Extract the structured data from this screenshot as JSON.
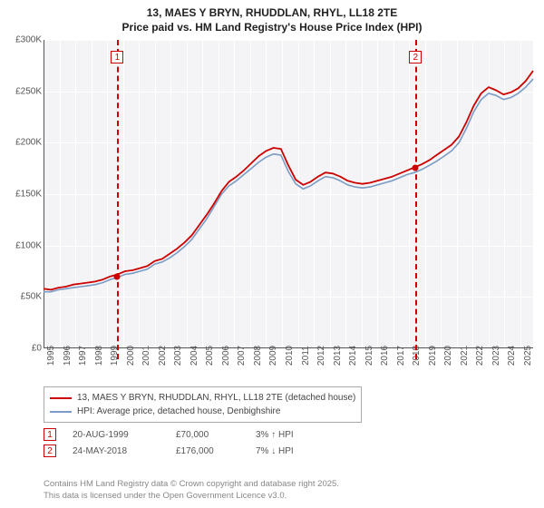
{
  "title": {
    "line1": "13, MAES Y BRYN, RHUDDLAN, RHYL, LL18 2TE",
    "line2": "Price paid vs. HM Land Registry's House Price Index (HPI)"
  },
  "chart": {
    "type": "line",
    "background_color": "#f4f4f6",
    "grid_color": "#ffffff",
    "axis_color": "#555555",
    "xlim": [
      1995,
      2025.8
    ],
    "years": [
      1995,
      1996,
      1997,
      1998,
      1999,
      2000,
      2001,
      2002,
      2003,
      2004,
      2005,
      2006,
      2007,
      2008,
      2009,
      2010,
      2011,
      2012,
      2013,
      2014,
      2015,
      2016,
      2017,
      2018,
      2019,
      2020,
      2021,
      2022,
      2023,
      2024,
      2025
    ],
    "ylim": [
      0,
      300000
    ],
    "ytick_step": 50000,
    "ylabels": [
      "£0",
      "£50K",
      "£100K",
      "£150K",
      "£200K",
      "£250K",
      "£300K"
    ],
    "series": [
      {
        "name": "hpi",
        "color": "#7a9bc4",
        "width": 1.6,
        "values": [
          55,
          55,
          57,
          58,
          59,
          60,
          61,
          62,
          64,
          67,
          69,
          72,
          73,
          75,
          77,
          82,
          84,
          88,
          93,
          99,
          106,
          116,
          126,
          138,
          150,
          158,
          163,
          169,
          175,
          181,
          186,
          189,
          188,
          172,
          160,
          155,
          158,
          163,
          167,
          166,
          163,
          159,
          157,
          156,
          157,
          159,
          161,
          163,
          166,
          169,
          171,
          174,
          178,
          182,
          187,
          192,
          200,
          214,
          230,
          242,
          248,
          246,
          242,
          244,
          248,
          254,
          262
        ]
      },
      {
        "name": "property",
        "color": "#cc0000",
        "width": 1.8,
        "values": [
          58,
          57,
          59,
          60,
          62,
          63,
          64,
          65,
          67,
          70,
          72,
          75,
          76,
          78,
          80,
          85,
          87,
          92,
          97,
          103,
          110,
          120,
          130,
          141,
          153,
          162,
          167,
          173,
          180,
          187,
          192,
          195,
          194,
          178,
          164,
          159,
          162,
          167,
          171,
          170,
          167,
          163,
          161,
          160,
          161,
          163,
          165,
          167,
          170,
          173,
          176,
          179,
          183,
          188,
          193,
          198,
          206,
          220,
          236,
          248,
          254,
          251,
          247,
          249,
          253,
          260,
          270
        ]
      }
    ],
    "sale_markers": [
      {
        "label": "1",
        "year": 1999.64,
        "price": 70000
      },
      {
        "label": "2",
        "year": 2018.4,
        "price": 176000
      }
    ]
  },
  "legend": {
    "rows": [
      {
        "color": "#cc0000",
        "label": "13, MAES Y BRYN, RHUDDLAN, RHYL, LL18 2TE (detached house)"
      },
      {
        "color": "#7a9bc4",
        "label": "HPI: Average price, detached house, Denbighshire"
      }
    ]
  },
  "sales": [
    {
      "marker": "1",
      "date": "20-AUG-1999",
      "price": "£70,000",
      "pct": "3% ↑ HPI"
    },
    {
      "marker": "2",
      "date": "24-MAY-2018",
      "price": "£176,000",
      "pct": "7% ↓ HPI"
    }
  ],
  "footer": {
    "line1": "Contains HM Land Registry data © Crown copyright and database right 2025.",
    "line2": "This data is licensed under the Open Government Licence v3.0."
  },
  "colors": {
    "marker": "#cc0000"
  }
}
